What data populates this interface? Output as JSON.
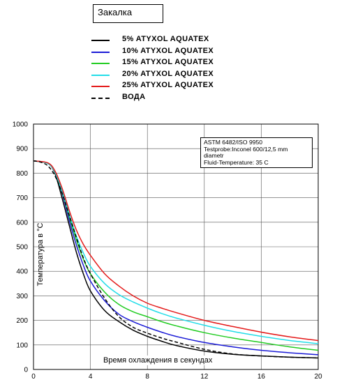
{
  "title_box": "Закалка",
  "note": {
    "lines": [
      "ASTM 6482/ISO 9950",
      "Testprobe:Inconel 600/12,5 mm",
      "diametr",
      "Fluid-Temperature: 35 C"
    ]
  },
  "chart_data": {
    "type": "line",
    "xlabel": "Время охлаждения в секундах",
    "ylabel": "Температура в °C",
    "xlim": [
      0,
      20
    ],
    "ylim": [
      0,
      1000
    ],
    "xticks": [
      0,
      4,
      8,
      12,
      16,
      20
    ],
    "yticks": [
      0,
      100,
      200,
      300,
      400,
      500,
      600,
      700,
      800,
      900,
      1000
    ],
    "grid": true,
    "legend_position": "top-left above chart",
    "series": [
      {
        "name": "5% ATYXOL AQUATEX",
        "color": "#000000",
        "dashed": false,
        "points": [
          [
            0,
            850
          ],
          [
            1,
            840
          ],
          [
            1.5,
            800
          ],
          [
            2,
            700
          ],
          [
            2.5,
            590
          ],
          [
            3,
            480
          ],
          [
            3.5,
            390
          ],
          [
            4,
            320
          ],
          [
            5,
            240
          ],
          [
            6,
            195
          ],
          [
            7,
            160
          ],
          [
            8,
            135
          ],
          [
            9,
            115
          ],
          [
            10,
            98
          ],
          [
            12,
            75
          ],
          [
            14,
            62
          ],
          [
            16,
            55
          ],
          [
            18,
            50
          ],
          [
            20,
            47
          ]
        ]
      },
      {
        "name": "10% ATYXOL AQUATEX",
        "color": "#1a1ad6",
        "dashed": false,
        "points": [
          [
            0,
            850
          ],
          [
            1,
            840
          ],
          [
            1.5,
            805
          ],
          [
            2,
            720
          ],
          [
            2.5,
            610
          ],
          [
            3,
            510
          ],
          [
            3.5,
            425
          ],
          [
            4,
            360
          ],
          [
            5,
            280
          ],
          [
            6,
            225
          ],
          [
            7,
            195
          ],
          [
            8,
            172
          ],
          [
            9,
            152
          ],
          [
            10,
            135
          ],
          [
            12,
            110
          ],
          [
            14,
            92
          ],
          [
            16,
            78
          ],
          [
            18,
            68
          ],
          [
            20,
            60
          ]
        ]
      },
      {
        "name": "15% ATYXOL AQUATEX",
        "color": "#22cc22",
        "dashed": false,
        "points": [
          [
            0,
            850
          ],
          [
            1,
            840
          ],
          [
            1.5,
            805
          ],
          [
            2,
            725
          ],
          [
            2.5,
            625
          ],
          [
            3,
            530
          ],
          [
            3.5,
            450
          ],
          [
            4,
            390
          ],
          [
            5,
            315
          ],
          [
            6,
            265
          ],
          [
            7,
            235
          ],
          [
            8,
            215
          ],
          [
            9,
            195
          ],
          [
            10,
            178
          ],
          [
            12,
            150
          ],
          [
            14,
            128
          ],
          [
            16,
            110
          ],
          [
            18,
            92
          ],
          [
            20,
            78
          ]
        ]
      },
      {
        "name": "20% ATYXOL AQUATEX",
        "color": "#22dde8",
        "dashed": false,
        "points": [
          [
            0,
            850
          ],
          [
            1,
            840
          ],
          [
            1.5,
            805
          ],
          [
            2,
            730
          ],
          [
            2.5,
            635
          ],
          [
            3,
            545
          ],
          [
            3.5,
            475
          ],
          [
            4,
            420
          ],
          [
            5,
            350
          ],
          [
            6,
            305
          ],
          [
            7,
            275
          ],
          [
            8,
            250
          ],
          [
            9,
            228
          ],
          [
            10,
            210
          ],
          [
            12,
            180
          ],
          [
            14,
            155
          ],
          [
            16,
            135
          ],
          [
            18,
            118
          ],
          [
            20,
            105
          ]
        ]
      },
      {
        "name": "25% ATYXOL AQUATEX",
        "color": "#e41a1a",
        "dashed": false,
        "points": [
          [
            0,
            850
          ],
          [
            1,
            842
          ],
          [
            1.5,
            810
          ],
          [
            2,
            740
          ],
          [
            2.5,
            650
          ],
          [
            3,
            570
          ],
          [
            3.5,
            510
          ],
          [
            4,
            465
          ],
          [
            5,
            390
          ],
          [
            6,
            340
          ],
          [
            7,
            300
          ],
          [
            8,
            270
          ],
          [
            9,
            250
          ],
          [
            10,
            232
          ],
          [
            12,
            200
          ],
          [
            14,
            175
          ],
          [
            16,
            152
          ],
          [
            18,
            133
          ],
          [
            20,
            118
          ]
        ]
      },
      {
        "name": "ВОДА",
        "color": "#000000",
        "dashed": true,
        "points": [
          [
            0,
            850
          ],
          [
            0.5,
            845
          ],
          [
            1,
            830
          ],
          [
            1.5,
            790
          ],
          [
            2,
            720
          ],
          [
            2.5,
            630
          ],
          [
            3,
            540
          ],
          [
            3.5,
            455
          ],
          [
            4,
            390
          ],
          [
            5,
            290
          ],
          [
            6,
            215
          ],
          [
            7,
            172
          ],
          [
            8,
            148
          ],
          [
            9,
            128
          ],
          [
            10,
            112
          ],
          [
            12,
            82
          ],
          [
            14,
            63
          ],
          [
            16,
            55
          ],
          [
            18,
            50
          ],
          [
            20,
            47
          ]
        ]
      }
    ]
  }
}
